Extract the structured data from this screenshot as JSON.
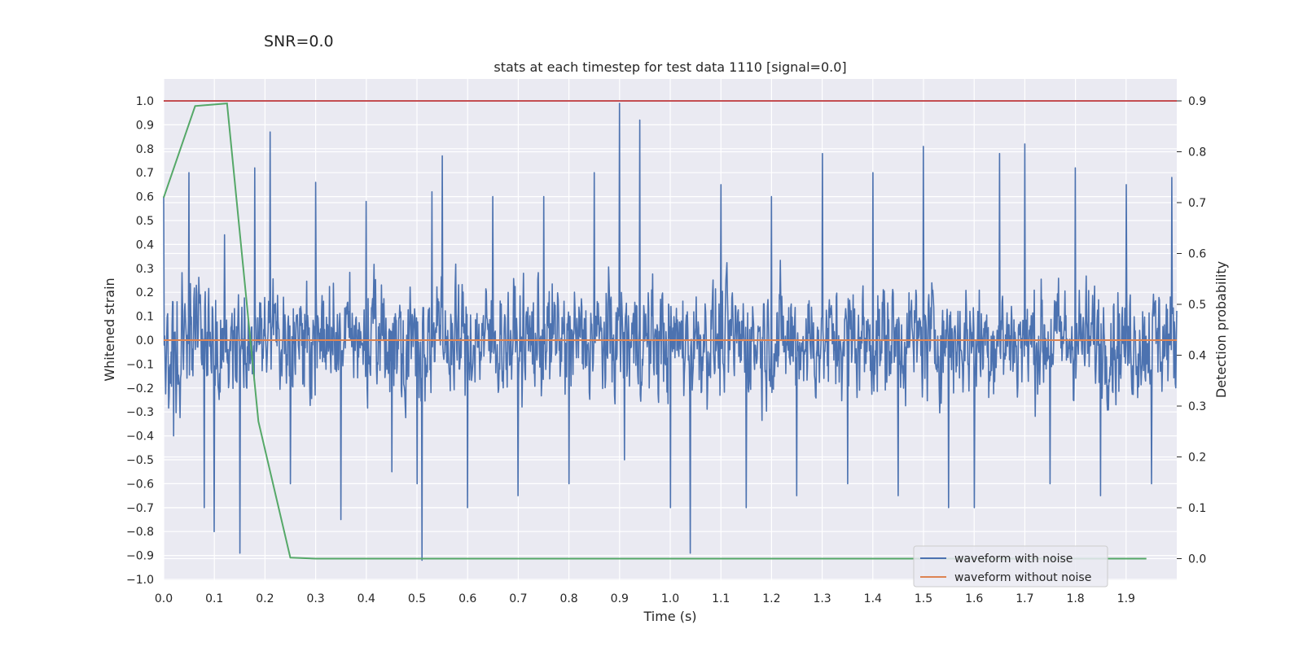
{
  "suptitle": "SNR=0.0",
  "chart_data": {
    "type": "line",
    "title": "stats at each timestep for test data 1110 [signal=0.0]",
    "xlabel": "Time (s)",
    "ylabel": "Whitened strain",
    "y2label": "Detection probability",
    "xlim": [
      0.0,
      2.0
    ],
    "ylim": [
      -1.0,
      1.0
    ],
    "y2lim": [
      -0.04,
      0.9
    ],
    "x_ticks": [
      "0.0",
      "0.1",
      "0.2",
      "0.3",
      "0.4",
      "0.5",
      "0.6",
      "0.7",
      "0.8",
      "0.9",
      "1.0",
      "1.1",
      "1.2",
      "1.3",
      "1.4",
      "1.5",
      "1.6",
      "1.7",
      "1.8",
      "1.9"
    ],
    "y_ticks": [
      "1.0",
      "0.9",
      "0.8",
      "0.7",
      "0.6",
      "0.5",
      "0.4",
      "0.3",
      "0.2",
      "0.1",
      "0.0",
      "−0.1",
      "−0.2",
      "−0.3",
      "−0.4",
      "−0.5",
      "−0.6",
      "−0.7",
      "−0.8",
      "−0.9",
      "−1.0"
    ],
    "y2_ticks": [
      "0.9",
      "0.8",
      "0.7",
      "0.6",
      "0.5",
      "0.4",
      "0.3",
      "0.2",
      "0.1",
      "0.0"
    ],
    "grid": true,
    "legend_position": "bottom-right",
    "series": [
      {
        "name": "waveform with noise",
        "color": "#4c72b0",
        "axis": "left",
        "style": "dense noisy trace",
        "x": [
          0.0,
          0.02,
          0.05,
          0.08,
          0.1,
          0.12,
          0.15,
          0.18,
          0.21,
          0.25,
          0.3,
          0.35,
          0.4,
          0.45,
          0.5,
          0.51,
          0.53,
          0.55,
          0.6,
          0.65,
          0.7,
          0.75,
          0.8,
          0.85,
          0.9,
          0.91,
          0.94,
          1.0,
          1.04,
          1.1,
          1.15,
          1.2,
          1.25,
          1.3,
          1.35,
          1.4,
          1.45,
          1.5,
          1.55,
          1.6,
          1.65,
          1.7,
          1.75,
          1.8,
          1.85,
          1.9,
          1.95,
          1.99
        ],
        "values": [
          0.6,
          -0.4,
          0.7,
          -0.7,
          -0.8,
          0.44,
          -0.89,
          0.72,
          0.87,
          -0.6,
          0.66,
          -0.75,
          0.58,
          -0.55,
          -0.6,
          -0.92,
          0.62,
          0.77,
          -0.7,
          0.6,
          -0.65,
          0.6,
          -0.6,
          0.7,
          0.99,
          -0.5,
          0.92,
          -0.7,
          -0.89,
          0.65,
          -0.7,
          0.6,
          -0.65,
          0.78,
          -0.6,
          0.7,
          -0.65,
          0.81,
          -0.7,
          -0.7,
          0.78,
          0.82,
          -0.6,
          0.72,
          -0.65,
          0.65,
          -0.6,
          0.68
        ]
      },
      {
        "name": "waveform without noise",
        "color": "#dd8452",
        "axis": "left",
        "x": [
          0.0,
          2.0
        ],
        "values": [
          0.0,
          0.0
        ]
      },
      {
        "name": "",
        "color": "#55a868",
        "axis": "right",
        "x": [
          0.0,
          0.062,
          0.125,
          0.187,
          0.25,
          0.3,
          1.94
        ],
        "values": [
          0.71,
          0.89,
          0.895,
          0.27,
          0.002,
          0.0,
          0.0
        ]
      },
      {
        "name": "",
        "color": "#c44e52",
        "axis": "right",
        "x": [
          0.0,
          2.0
        ],
        "values": [
          0.9,
          0.9
        ]
      }
    ]
  }
}
